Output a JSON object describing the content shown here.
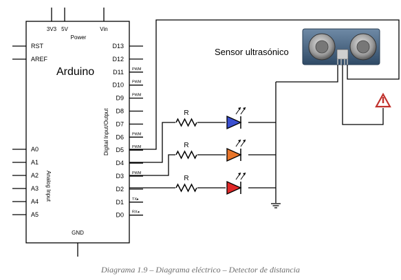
{
  "board": {
    "name": "Arduino",
    "power_label": "Power",
    "top_pins": [
      "3V3",
      "5V",
      "Vin"
    ],
    "left_pins": [
      "RST",
      "AREF"
    ],
    "analog_pins": [
      "A0",
      "A1",
      "A2",
      "A3",
      "A4",
      "A5"
    ],
    "analog_group_label": "Analog Input",
    "digital_group_label": "Digital Input/Output",
    "digital_pins": [
      "D13",
      "D12",
      "D11",
      "D10",
      "D9",
      "D8",
      "D7",
      "D6",
      "D5",
      "D4",
      "D3",
      "D2",
      "D1",
      "D0"
    ],
    "pwm_label": "PWM",
    "tx_label": "TX▸",
    "rx_label": "RX◂",
    "gnd_label": "GND"
  },
  "sensor": {
    "label": "Sensor ultrasónico"
  },
  "resistor_label": "R",
  "leds": [
    {
      "color": "#3a4fd0"
    },
    {
      "color": "#e8752a"
    },
    {
      "color": "#e02828"
    }
  ],
  "caption": "Diagrama 1.9 – Diagrama eléctrico – Detector de distancia"
}
